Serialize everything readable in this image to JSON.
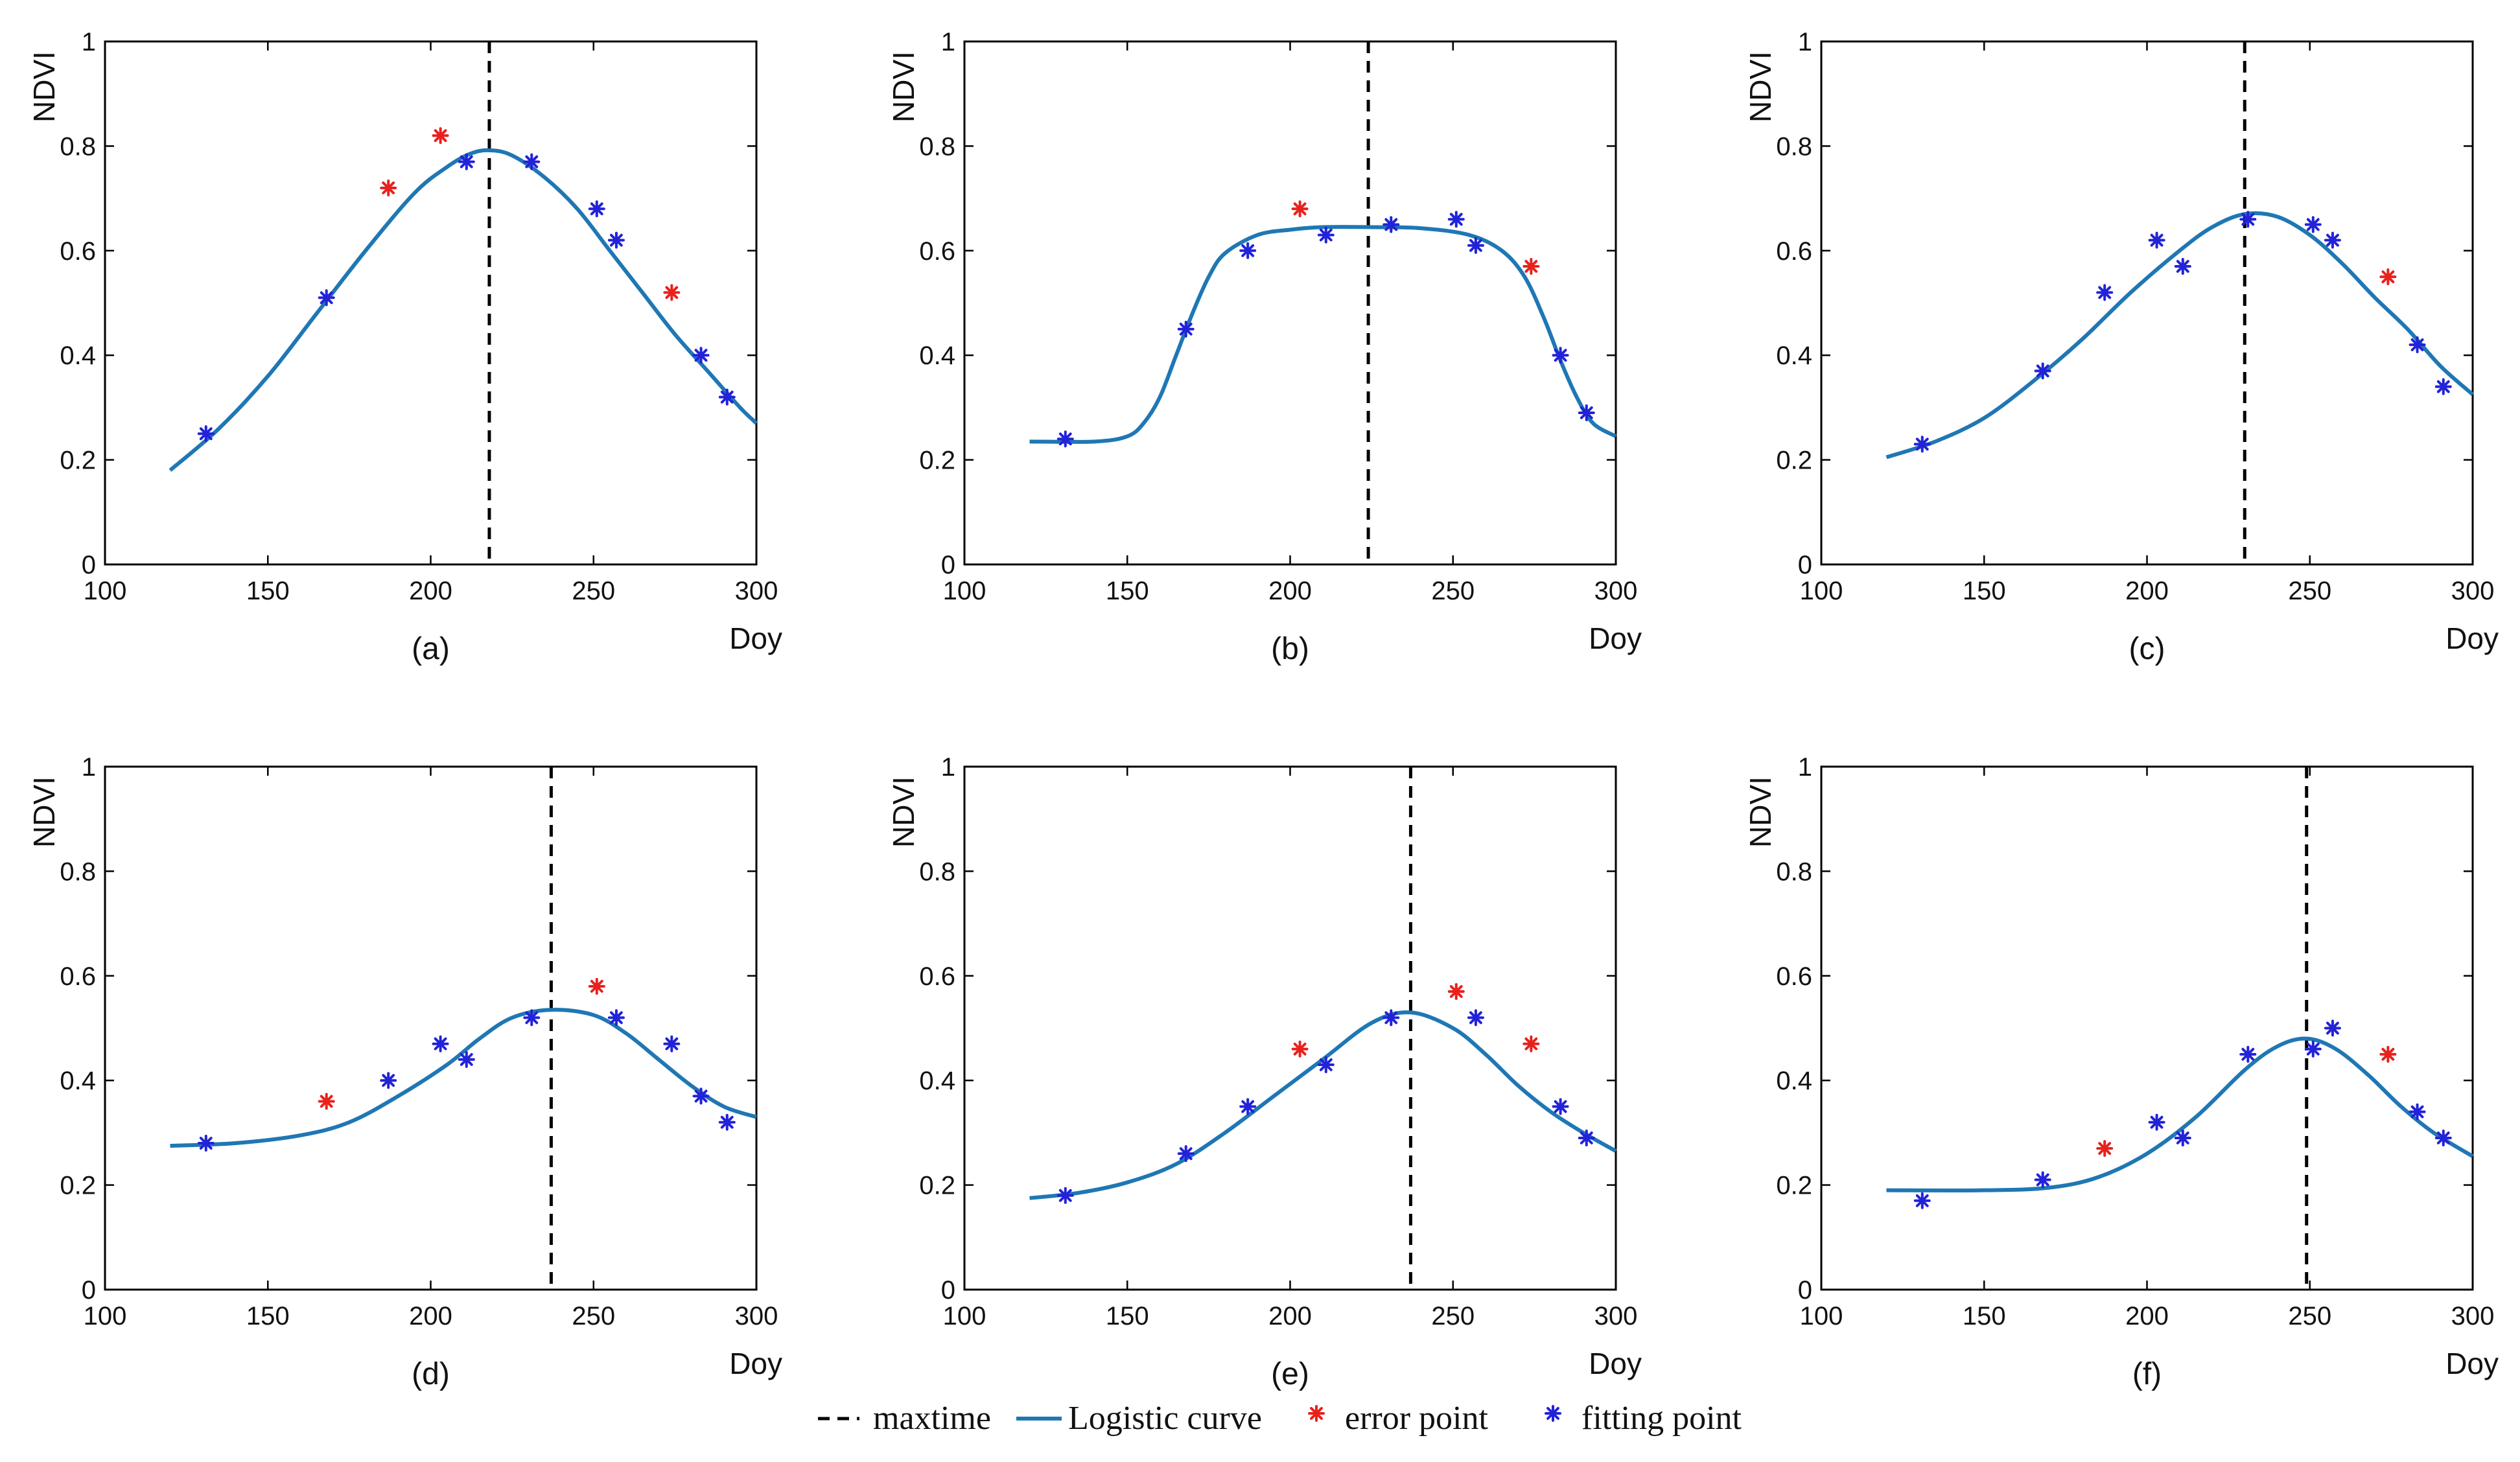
{
  "chart_data": [
    {
      "type": "line",
      "title": "(a)",
      "xlabel": "Doy",
      "ylabel": "NDVI",
      "xlim": [
        100,
        300
      ],
      "ylim": [
        0,
        1
      ],
      "xticks": [
        "100",
        "150",
        "200",
        "250",
        "300"
      ],
      "yticks": [
        "0",
        "0.2",
        "0.4",
        "0.6",
        "0.8",
        "1"
      ],
      "maxtime": 218,
      "curve": {
        "x": [
          120,
          135,
          150,
          165,
          180,
          195,
          205,
          212,
          218,
          225,
          235,
          245,
          255,
          265,
          275,
          285,
          295,
          300
        ],
        "y": [
          0.18,
          0.26,
          0.36,
          0.48,
          0.6,
          0.71,
          0.76,
          0.785,
          0.792,
          0.782,
          0.74,
          0.68,
          0.6,
          0.52,
          0.44,
          0.37,
          0.3,
          0.27
        ]
      },
      "fitting_points": {
        "x": [
          131,
          168,
          211,
          231,
          251,
          257,
          283,
          291
        ],
        "y": [
          0.25,
          0.51,
          0.77,
          0.77,
          0.68,
          0.62,
          0.4,
          0.32
        ]
      },
      "error_points": {
        "x": [
          187,
          203,
          274
        ],
        "y": [
          0.72,
          0.82,
          0.52
        ]
      }
    },
    {
      "type": "line",
      "title": "(b)",
      "xlabel": "Doy",
      "ylabel": "NDVI",
      "xlim": [
        100,
        300
      ],
      "ylim": [
        0,
        1
      ],
      "xticks": [
        "100",
        "150",
        "200",
        "250",
        "300"
      ],
      "yticks": [
        "0",
        "0.2",
        "0.4",
        "0.6",
        "0.8",
        "1"
      ],
      "maxtime": 224,
      "curve": {
        "x": [
          120,
          140,
          150,
          155,
          160,
          165,
          170,
          175,
          180,
          190,
          200,
          210,
          225,
          240,
          255,
          265,
          272,
          278,
          283,
          288,
          293,
          300
        ],
        "y": [
          0.235,
          0.235,
          0.245,
          0.27,
          0.32,
          0.4,
          0.48,
          0.55,
          0.595,
          0.63,
          0.64,
          0.645,
          0.645,
          0.643,
          0.63,
          0.6,
          0.55,
          0.47,
          0.39,
          0.32,
          0.27,
          0.245
        ]
      },
      "fitting_points": {
        "x": [
          131,
          168,
          187,
          211,
          231,
          251,
          257,
          283,
          291
        ],
        "y": [
          0.24,
          0.45,
          0.6,
          0.63,
          0.65,
          0.66,
          0.61,
          0.4,
          0.29
        ]
      },
      "error_points": {
        "x": [
          203,
          274
        ],
        "y": [
          0.68,
          0.57
        ]
      }
    },
    {
      "type": "line",
      "title": "(c)",
      "xlabel": "Doy",
      "ylabel": "NDVI",
      "xlim": [
        100,
        300
      ],
      "ylim": [
        0,
        1
      ],
      "xticks": [
        "100",
        "150",
        "200",
        "250",
        "300"
      ],
      "yticks": [
        "0",
        "0.2",
        "0.4",
        "0.6",
        "0.8",
        "1"
      ],
      "maxtime": 230,
      "curve": {
        "x": [
          120,
          135,
          150,
          165,
          180,
          195,
          210,
          220,
          230,
          240,
          250,
          260,
          270,
          280,
          290,
          300
        ],
        "y": [
          0.205,
          0.235,
          0.28,
          0.35,
          0.43,
          0.52,
          0.6,
          0.645,
          0.67,
          0.665,
          0.63,
          0.575,
          0.51,
          0.45,
          0.38,
          0.325
        ]
      },
      "fitting_points": {
        "x": [
          131,
          168,
          187,
          203,
          211,
          231,
          251,
          257,
          283,
          291
        ],
        "y": [
          0.23,
          0.37,
          0.52,
          0.62,
          0.57,
          0.66,
          0.65,
          0.62,
          0.42,
          0.34
        ]
      },
      "error_points": {
        "x": [
          274
        ],
        "y": [
          0.55
        ]
      }
    },
    {
      "type": "line",
      "title": "(d)",
      "xlabel": "Doy",
      "ylabel": "NDVI",
      "xlim": [
        100,
        300
      ],
      "ylim": [
        0,
        1
      ],
      "xticks": [
        "100",
        "150",
        "200",
        "250",
        "300"
      ],
      "yticks": [
        "0",
        "0.2",
        "0.4",
        "0.6",
        "0.8",
        "1"
      ],
      "maxtime": 237,
      "curve": {
        "x": [
          120,
          140,
          160,
          175,
          190,
          205,
          215,
          225,
          237,
          250,
          260,
          270,
          280,
          290,
          300
        ],
        "y": [
          0.275,
          0.28,
          0.295,
          0.32,
          0.37,
          0.43,
          0.48,
          0.52,
          0.535,
          0.525,
          0.49,
          0.44,
          0.39,
          0.35,
          0.33
        ]
      },
      "fitting_points": {
        "x": [
          131,
          187,
          203,
          211,
          231,
          257,
          274,
          283,
          291
        ],
        "y": [
          0.28,
          0.4,
          0.47,
          0.44,
          0.52,
          0.52,
          0.47,
          0.37,
          0.32
        ]
      },
      "error_points": {
        "x": [
          168,
          251
        ],
        "y": [
          0.36,
          0.58
        ]
      }
    },
    {
      "type": "line",
      "title": "(e)",
      "xlabel": "Doy",
      "ylabel": "NDVI",
      "xlim": [
        100,
        300
      ],
      "ylim": [
        0,
        1
      ],
      "xticks": [
        "100",
        "150",
        "200",
        "250",
        "300"
      ],
      "yticks": [
        "0",
        "0.2",
        "0.4",
        "0.6",
        "0.8",
        "1"
      ],
      "maxtime": 237,
      "curve": {
        "x": [
          120,
          135,
          150,
          165,
          180,
          195,
          210,
          225,
          237,
          250,
          260,
          270,
          280,
          290,
          300
        ],
        "y": [
          0.175,
          0.185,
          0.205,
          0.24,
          0.3,
          0.37,
          0.44,
          0.51,
          0.53,
          0.5,
          0.45,
          0.39,
          0.34,
          0.3,
          0.265
        ]
      },
      "fitting_points": {
        "x": [
          131,
          168,
          187,
          211,
          231,
          257,
          283,
          291
        ],
        "y": [
          0.18,
          0.26,
          0.35,
          0.43,
          0.52,
          0.52,
          0.35,
          0.29
        ]
      },
      "error_points": {
        "x": [
          203,
          251,
          274
        ],
        "y": [
          0.46,
          0.57,
          0.47
        ]
      }
    },
    {
      "type": "line",
      "title": "(f)",
      "xlabel": "Doy",
      "ylabel": "NDVI",
      "xlim": [
        100,
        300
      ],
      "ylim": [
        0,
        1
      ],
      "xticks": [
        "100",
        "150",
        "200",
        "250",
        "300"
      ],
      "yticks": [
        "0",
        "0.2",
        "0.4",
        "0.6",
        "0.8",
        "1"
      ],
      "maxtime": 249,
      "curve": {
        "x": [
          120,
          150,
          170,
          185,
          200,
          215,
          230,
          240,
          249,
          258,
          268,
          278,
          288,
          300
        ],
        "y": [
          0.19,
          0.19,
          0.195,
          0.215,
          0.26,
          0.33,
          0.42,
          0.465,
          0.48,
          0.46,
          0.41,
          0.35,
          0.3,
          0.255
        ]
      },
      "fitting_points": {
        "x": [
          131,
          168,
          203,
          211,
          231,
          251,
          257,
          283,
          291
        ],
        "y": [
          0.17,
          0.21,
          0.32,
          0.29,
          0.45,
          0.46,
          0.5,
          0.34,
          0.29
        ]
      },
      "error_points": {
        "x": [
          187,
          274
        ],
        "y": [
          0.27,
          0.45
        ]
      }
    }
  ],
  "legend": {
    "items": [
      {
        "key": "maxtime",
        "label": "maxtime",
        "style": "dashed-line"
      },
      {
        "key": "curve",
        "label": "Logistic curve",
        "style": "solid-line"
      },
      {
        "key": "error",
        "label": "error point",
        "style": "red-star"
      },
      {
        "key": "fitting",
        "label": "fitting point",
        "style": "blue-star"
      }
    ]
  },
  "colors": {
    "curve": "#1f77b4",
    "maxtime": "#000000",
    "error_point": "#e8211d",
    "fitting_point": "#2222d8",
    "axis": "#000000"
  }
}
